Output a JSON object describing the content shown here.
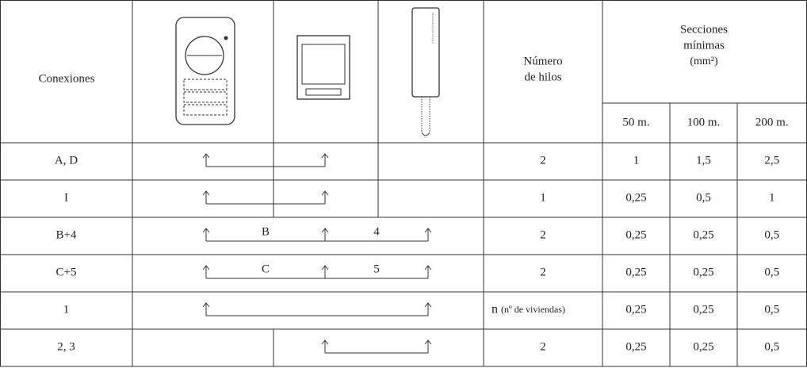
{
  "header": {
    "conexiones": "Conexiones",
    "hilos": [
      "Número",
      "de hilos"
    ],
    "secciones": [
      "Secciones",
      "mínimas",
      "(mm²)"
    ],
    "distances": [
      "50 m.",
      "100 m.",
      "200 m."
    ]
  },
  "table": {
    "rows": [
      {
        "label": "A, D",
        "wire_labels": [],
        "hilos": "2",
        "sections": [
          "1",
          "1,5",
          "2,5"
        ]
      },
      {
        "label": "I",
        "wire_labels": [],
        "hilos": "1",
        "sections": [
          "0,25",
          "0,5",
          "1"
        ]
      },
      {
        "label": "B+4",
        "wire_labels": [
          "B",
          "4"
        ],
        "hilos": "2",
        "sections": [
          "0,25",
          "0,25",
          "0,5"
        ]
      },
      {
        "label": "C+5",
        "wire_labels": [
          "C",
          "5"
        ],
        "hilos": "2",
        "sections": [
          "0,25",
          "0,25",
          "0,5"
        ]
      },
      {
        "label": "1",
        "wire_labels": [],
        "hilos": "n",
        "hilos_note": "(nº de viviendas)",
        "sections": [
          "0,25",
          "0,25",
          "0,5"
        ]
      },
      {
        "label": "2, 3",
        "wire_labels": [],
        "hilos": "2",
        "sections": [
          "0,25",
          "0,25",
          "0,5"
        ]
      }
    ]
  }
}
